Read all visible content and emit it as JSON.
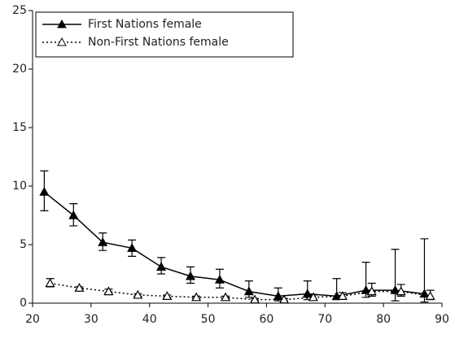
{
  "chart_data": {
    "type": "line",
    "xlim": [
      20,
      90
    ],
    "xticks": [
      20,
      30,
      40,
      50,
      60,
      70,
      80,
      90
    ],
    "ylim": [
      0,
      25
    ],
    "yticks": [
      0,
      5,
      10,
      15,
      20,
      25
    ],
    "legend": "top-left",
    "series": [
      {
        "name": "First Nations female",
        "color": "#000000",
        "line": "solid",
        "marker": "filled",
        "x": [
          22,
          27,
          32,
          37,
          42,
          47,
          52,
          57,
          62,
          67,
          72,
          77,
          82,
          87
        ],
        "values": [
          9.5,
          7.5,
          5.2,
          4.7,
          3.1,
          2.3,
          2.0,
          1.0,
          0.6,
          0.8,
          0.6,
          1.1,
          1.1,
          0.8
        ],
        "lower": [
          7.9,
          6.6,
          4.5,
          4.0,
          2.5,
          1.7,
          1.3,
          0.5,
          0.2,
          0.3,
          0.3,
          0.5,
          0.2,
          0.1
        ],
        "upper": [
          11.3,
          8.5,
          6.0,
          5.4,
          3.9,
          3.1,
          2.9,
          1.9,
          1.3,
          1.9,
          2.1,
          3.5,
          4.6,
          5.5
        ]
      },
      {
        "name": "Non-First Nations female",
        "color": "#000000",
        "line": "dotted",
        "marker": "open",
        "x": [
          23,
          28,
          33,
          38,
          43,
          48,
          53,
          58,
          63,
          68,
          73,
          78,
          83,
          88
        ],
        "values": [
          1.7,
          1.3,
          1.0,
          0.7,
          0.6,
          0.5,
          0.5,
          0.3,
          0.3,
          0.5,
          0.6,
          1.0,
          1.0,
          0.6
        ],
        "lower": [
          1.4,
          1.1,
          0.9,
          0.6,
          0.5,
          0.4,
          0.4,
          0.2,
          0.2,
          0.3,
          0.4,
          0.6,
          0.6,
          0.3
        ],
        "upper": [
          2.1,
          1.4,
          1.2,
          0.8,
          0.7,
          0.6,
          0.6,
          0.4,
          0.4,
          0.7,
          0.9,
          1.7,
          1.6,
          1.1
        ]
      }
    ]
  }
}
